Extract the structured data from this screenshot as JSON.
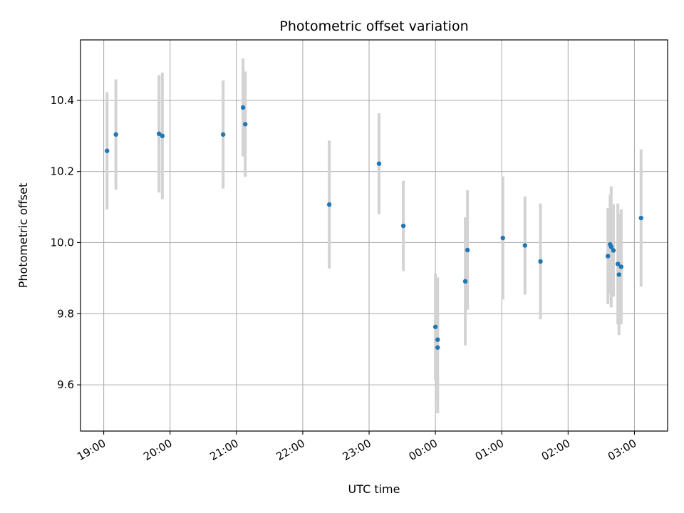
{
  "chart_data": {
    "type": "scatter",
    "title": "Photometric offset variation",
    "xlabel": "UTC time",
    "ylabel": "Photometric offset",
    "grid": true,
    "x_axis_kind": "time",
    "xlim": [
      "18:39",
      "03:30"
    ],
    "ylim": [
      9.47,
      10.57
    ],
    "x_ticks": [
      "19:00",
      "20:00",
      "21:00",
      "22:00",
      "23:00",
      "00:00",
      "01:00",
      "02:00",
      "03:00"
    ],
    "y_ticks": [
      9.6,
      9.8,
      10.0,
      10.2,
      10.4
    ],
    "y_tick_labels": [
      "9.6",
      "9.8",
      "10.0",
      "10.2",
      "10.4"
    ],
    "colors": {
      "point": "#1f77b4",
      "errorbar": "#d3d3d3",
      "grid": "#b0b0b0"
    },
    "points": [
      {
        "x": "19:03",
        "y": 10.258,
        "yerr": 0.165
      },
      {
        "x": "19:11",
        "y": 10.304,
        "yerr": 0.155
      },
      {
        "x": "19:50",
        "y": 10.306,
        "yerr": 0.165
      },
      {
        "x": "19:53",
        "y": 10.3,
        "yerr": 0.178
      },
      {
        "x": "20:48",
        "y": 10.304,
        "yerr": 0.152
      },
      {
        "x": "21:06",
        "y": 10.38,
        "yerr": 0.138
      },
      {
        "x": "21:08",
        "y": 10.333,
        "yerr": 0.148
      },
      {
        "x": "22:24",
        "y": 10.107,
        "yerr": 0.18
      },
      {
        "x": "23:09",
        "y": 10.222,
        "yerr": 0.142
      },
      {
        "x": "23:31",
        "y": 10.047,
        "yerr": 0.127
      },
      {
        "x": "00:00",
        "y": 9.763,
        "yerr": 0.15
      },
      {
        "x": "00:02",
        "y": 9.727,
        "yerr": 0.175
      },
      {
        "x": "00:02",
        "y": 9.705,
        "yerr": 0.185
      },
      {
        "x": "00:27",
        "y": 9.891,
        "yerr": 0.18
      },
      {
        "x": "00:29",
        "y": 9.979,
        "yerr": 0.168
      },
      {
        "x": "01:01",
        "y": 10.013,
        "yerr": 0.173
      },
      {
        "x": "01:21",
        "y": 9.992,
        "yerr": 0.138
      },
      {
        "x": "01:35",
        "y": 9.947,
        "yerr": 0.163
      },
      {
        "x": "02:36",
        "y": 9.962,
        "yerr": 0.135
      },
      {
        "x": "02:38",
        "y": 9.995,
        "yerr": 0.14
      },
      {
        "x": "02:39",
        "y": 9.988,
        "yerr": 0.17
      },
      {
        "x": "02:41",
        "y": 9.978,
        "yerr": 0.13
      },
      {
        "x": "02:45",
        "y": 9.94,
        "yerr": 0.17
      },
      {
        "x": "02:46",
        "y": 9.91,
        "yerr": 0.17
      },
      {
        "x": "02:48",
        "y": 9.932,
        "yerr": 0.162
      },
      {
        "x": "03:06",
        "y": 10.069,
        "yerr": 0.193
      }
    ]
  }
}
